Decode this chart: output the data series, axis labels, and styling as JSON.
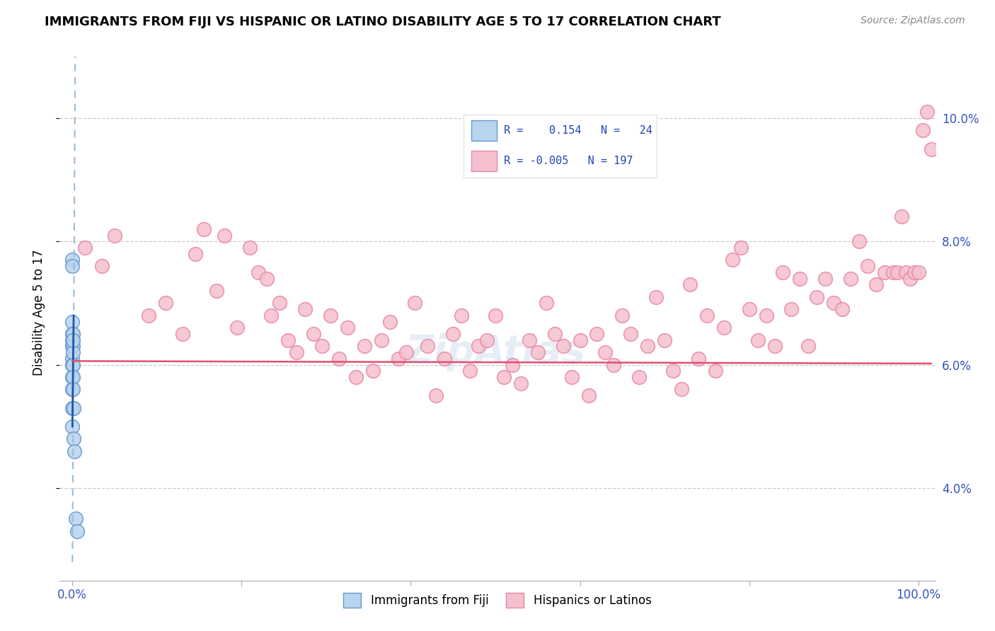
{
  "title": "IMMIGRANTS FROM FIJI VS HISPANIC OR LATINO DISABILITY AGE 5 TO 17 CORRELATION CHART",
  "source": "Source: ZipAtlas.com",
  "ylabel": "Disability Age 5 to 17",
  "xlim": [
    -1.5,
    102.0
  ],
  "ylim": [
    2.5,
    11.2
  ],
  "yticks": [
    4.0,
    6.0,
    8.0,
    10.0
  ],
  "fiji_R": 0.154,
  "fiji_N": 24,
  "hispanic_R": -0.005,
  "hispanic_N": 197,
  "fiji_color": "#b8d4ee",
  "fiji_edge_color": "#6699cc",
  "hispanic_color": "#f5c0ce",
  "hispanic_edge_color": "#e888a8",
  "trend_fiji_dashed_color": "#99bbdd",
  "trend_fiji_solid_color": "#2255aa",
  "trend_hispanic_color": "#e05070",
  "grid_color": "#cccccc",
  "background_color": "#ffffff",
  "watermark": "ZipAtlas",
  "fiji_x": [
    0.0,
    0.0,
    0.0,
    0.0,
    0.0,
    0.0,
    0.0,
    0.0,
    0.0,
    0.0,
    0.0,
    0.0,
    0.05,
    0.05,
    0.05,
    0.05,
    0.05,
    0.08,
    0.1,
    0.12,
    0.15,
    0.2,
    0.38,
    0.55
  ],
  "fiji_y": [
    7.7,
    7.6,
    6.7,
    6.5,
    6.4,
    6.3,
    6.1,
    6.0,
    5.8,
    5.6,
    5.3,
    5.0,
    6.3,
    6.2,
    6.0,
    5.8,
    5.6,
    6.5,
    6.4,
    5.3,
    4.8,
    4.6,
    3.5,
    3.3
  ],
  "hispanic_x": [
    1.5,
    3.5,
    5.0,
    9.0,
    11.0,
    13.0,
    14.5,
    15.5,
    17.0,
    18.0,
    19.5,
    21.0,
    22.0,
    23.0,
    23.5,
    24.5,
    25.5,
    26.5,
    27.5,
    28.5,
    29.5,
    30.5,
    31.5,
    32.5,
    33.5,
    34.5,
    35.5,
    36.5,
    37.5,
    38.5,
    39.5,
    40.5,
    42.0,
    43.0,
    44.0,
    45.0,
    46.0,
    47.0,
    48.0,
    49.0,
    50.0,
    51.0,
    52.0,
    53.0,
    54.0,
    55.0,
    56.0,
    57.0,
    58.0,
    59.0,
    60.0,
    61.0,
    62.0,
    63.0,
    64.0,
    65.0,
    66.0,
    67.0,
    68.0,
    69.0,
    70.0,
    71.0,
    72.0,
    73.0,
    74.0,
    75.0,
    76.0,
    77.0,
    78.0,
    79.0,
    80.0,
    81.0,
    82.0,
    83.0,
    84.0,
    85.0,
    86.0,
    87.0,
    88.0,
    89.0,
    90.0,
    91.0,
    92.0,
    93.0,
    94.0,
    95.0,
    96.0,
    97.0,
    97.5,
    98.0,
    98.5,
    99.0,
    99.5,
    100.0,
    100.5,
    101.0,
    101.5
  ],
  "hispanic_y": [
    7.9,
    7.6,
    8.1,
    6.8,
    7.0,
    6.5,
    7.8,
    8.2,
    7.2,
    8.1,
    6.6,
    7.9,
    7.5,
    7.4,
    6.8,
    7.0,
    6.4,
    6.2,
    6.9,
    6.5,
    6.3,
    6.8,
    6.1,
    6.6,
    5.8,
    6.3,
    5.9,
    6.4,
    6.7,
    6.1,
    6.2,
    7.0,
    6.3,
    5.5,
    6.1,
    6.5,
    6.8,
    5.9,
    6.3,
    6.4,
    6.8,
    5.8,
    6.0,
    5.7,
    6.4,
    6.2,
    7.0,
    6.5,
    6.3,
    5.8,
    6.4,
    5.5,
    6.5,
    6.2,
    6.0,
    6.8,
    6.5,
    5.8,
    6.3,
    7.1,
    6.4,
    5.9,
    5.6,
    7.3,
    6.1,
    6.8,
    5.9,
    6.6,
    7.7,
    7.9,
    6.9,
    6.4,
    6.8,
    6.3,
    7.5,
    6.9,
    7.4,
    6.3,
    7.1,
    7.4,
    7.0,
    6.9,
    7.4,
    8.0,
    7.6,
    7.3,
    7.5,
    7.5,
    7.5,
    8.4,
    7.5,
    7.4,
    7.5,
    7.5,
    9.8,
    10.1,
    9.5
  ]
}
